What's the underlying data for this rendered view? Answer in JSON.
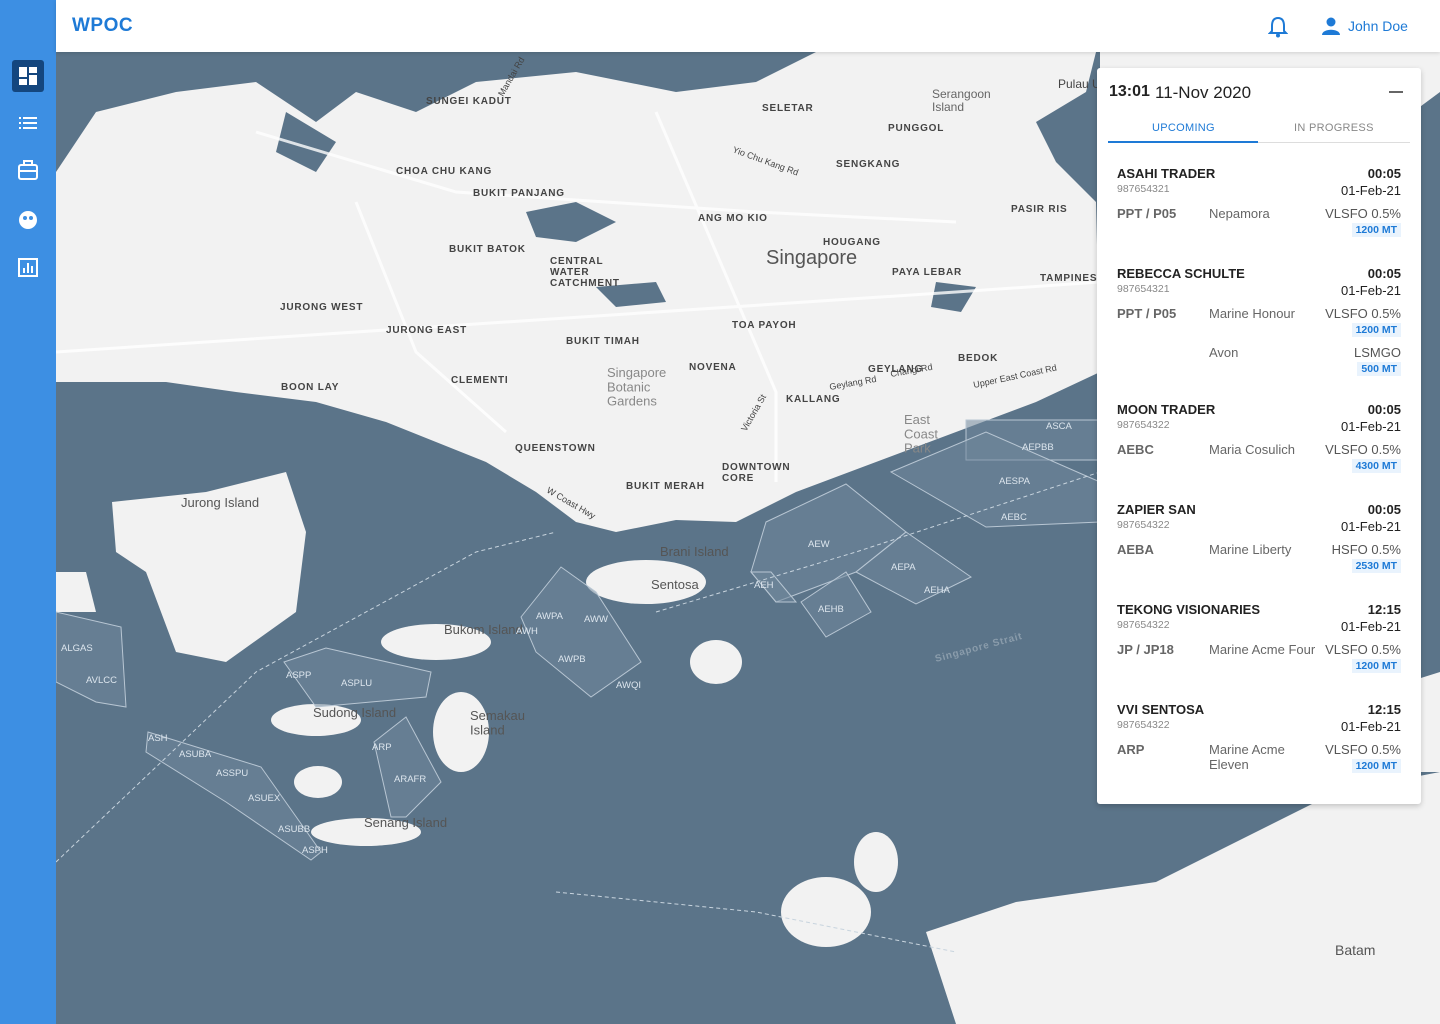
{
  "header": {
    "brand": "WPOC",
    "user": "John Doe"
  },
  "panel": {
    "time": "13:01",
    "date": "11-Nov 2020",
    "tabs": [
      "UPCOMING",
      "IN PROGRESS"
    ],
    "vessels": [
      {
        "name": "ASAHI TRADER",
        "id": "987654321",
        "time": "00:05",
        "date": "01-Feb-21",
        "rows": [
          {
            "location": "PPT / P05",
            "supplier": "Nepamora",
            "product": "VLSFO 0.5%",
            "quantity": "1200 MT"
          }
        ]
      },
      {
        "name": "REBECCA SCHULTE",
        "id": "987654321",
        "time": "00:05",
        "date": "01-Feb-21",
        "rows": [
          {
            "location": "PPT / P05",
            "supplier": "Marine Honour",
            "product": "VLSFO 0.5%",
            "quantity": "1200 MT"
          },
          {
            "supplier": "Avon",
            "product": "LSMGO",
            "quantity": "500 MT"
          }
        ]
      },
      {
        "name": "MOON TRADER",
        "id": "987654322",
        "time": "00:05",
        "date": "01-Feb-21",
        "rows": [
          {
            "location": "AEBC",
            "supplier": "Maria Cosulich",
            "product": "VLSFO 0.5%",
            "quantity": "4300 MT"
          }
        ]
      },
      {
        "name": "ZAPIER SAN",
        "id": "987654322",
        "time": "00:05",
        "date": "01-Feb-21",
        "rows": [
          {
            "location": "AEBA",
            "supplier": "Marine Liberty",
            "product": "HSFO 0.5%",
            "quantity": "2530 MT"
          }
        ]
      },
      {
        "name": "TEKONG VISIONARIES",
        "id": "987654322",
        "time": "12:15",
        "date": "01-Feb-21",
        "rows": [
          {
            "location": "JP / JP18",
            "supplier": "Marine Acme Four",
            "product": "VLSFO 0.5%",
            "quantity": "1200 MT"
          }
        ]
      },
      {
        "name": "VVI SENTOSA",
        "id": "987654322",
        "time": "12:15",
        "date": "01-Feb-21",
        "rows": [
          {
            "location": "ARP",
            "supplier": "Marine Acme Eleven",
            "product": "VLSFO 0.5%",
            "quantity": "1200 MT"
          }
        ]
      }
    ]
  },
  "map": {
    "labels": [
      "Singapore",
      "SUNGEI KADUT",
      "SELETAR",
      "PUNGGOL",
      "Serangoon Island",
      "Pulau Ubin",
      "CHOA CHU KANG",
      "BUKIT PANJANG",
      "ANG MO KIO",
      "SENGKANG",
      "PASIR RIS",
      "BUKIT BATOK",
      "CENTRAL WATER CATCHMENT",
      "HOUGANG",
      "PAYA LEBAR",
      "TAMPINES",
      "JURONG WEST",
      "JURONG EAST",
      "TOA PAYOH",
      "BUKIT TIMAH",
      "NOVENA",
      "GEYLANG",
      "BEDOK",
      "BOON LAY",
      "CLEMENTI",
      "Singapore Botanic Gardens",
      "KALLANG",
      "East Coast Park",
      "QUEENSTOWN",
      "DOWNTOWN CORE",
      "BUKIT MERAH",
      "Jurong Island",
      "Brani Island",
      "Sentosa",
      "Bukom Island",
      "Sudong Island",
      "Semakau Island",
      "Senang Island",
      "Batam",
      "Singapore Strait",
      "Mandai Rd",
      "Yio Chu Kang Rd",
      "Geylang Rd",
      "Changi Rd",
      "Upper East Coast Rd",
      "Victoria St",
      "W Coast Hwy"
    ],
    "zones": [
      "ASCA",
      "AEPBB",
      "AESPA",
      "AEBC",
      "AEW",
      "AEPA",
      "AEHA",
      "AEHB",
      "AEH",
      "AWPA",
      "AWW",
      "AWH",
      "AWPB",
      "AWQI",
      "ALGAS",
      "AVLCC",
      "ASPP",
      "ASPLU",
      "ARP",
      "ARAFR",
      "ASH",
      "ASUBA",
      "ASSPU",
      "ASUEX",
      "ASUBB",
      "ASPH"
    ]
  }
}
